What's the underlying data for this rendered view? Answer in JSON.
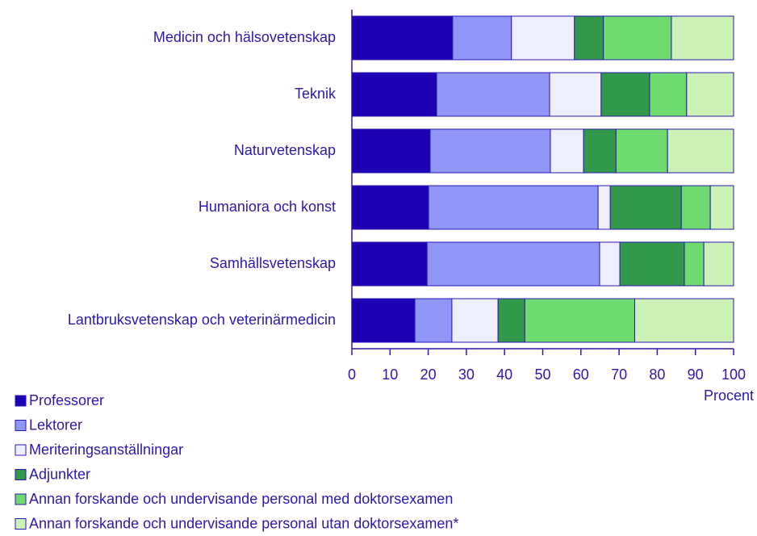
{
  "chart_data": {
    "type": "stacked-bar-horizontal",
    "categories": [
      "Medicin och hälsovetenskap",
      "Teknik",
      "Naturvetenskap",
      "Humaniora och konst",
      "Samhällsvetenskap",
      "Lantbruksvetenskap och veterinärmedicin"
    ],
    "series": [
      {
        "name": "Professorer",
        "color": "#1e00b4",
        "values": [
          26.4,
          22.2,
          20.5,
          20.1,
          19.7,
          16.5
        ]
      },
      {
        "name": "Lektorer",
        "color": "#8f96f5",
        "values": [
          15.4,
          29.6,
          31.5,
          44.4,
          45.2,
          9.7
        ]
      },
      {
        "name": "Meriteringsanställningar",
        "color": "#eeeefc",
        "values": [
          16.5,
          13.5,
          8.7,
          3.2,
          5.3,
          12.1
        ]
      },
      {
        "name": "Adjunkter",
        "color": "#33994a",
        "values": [
          7.6,
          12.7,
          8.5,
          18.6,
          16.9,
          7.0
        ]
      },
      {
        "name": "Annan forskande och undervisande personal med doktorsexamen",
        "color": "#6cda6c",
        "values": [
          17.8,
          9.7,
          13.5,
          7.6,
          5.1,
          28.8
        ]
      },
      {
        "name": "Annan forskande och undervisande personal utan doktorsexamen*",
        "color": "#ccf2b8",
        "values": [
          16.3,
          12.3,
          17.3,
          6.1,
          7.8,
          25.9
        ]
      }
    ],
    "x_label": "Procent",
    "xlim": [
      0,
      100
    ],
    "xticks": [
      0,
      10,
      20,
      30,
      40,
      50,
      60,
      70,
      80,
      90,
      100
    ],
    "legend": "bottom-left"
  }
}
